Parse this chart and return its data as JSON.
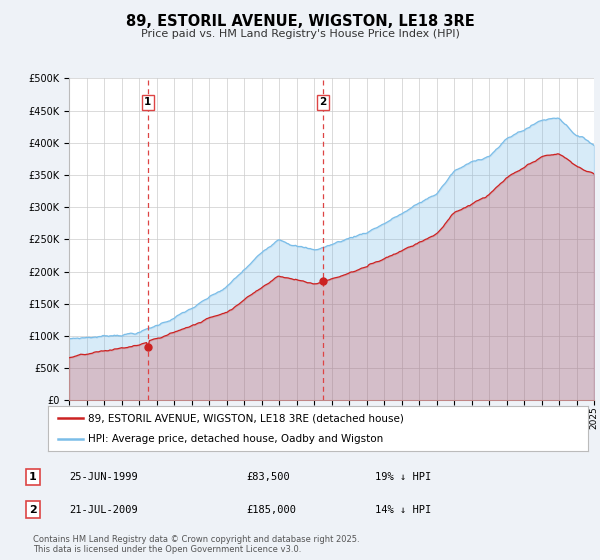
{
  "title": "89, ESTORIL AVENUE, WIGSTON, LE18 3RE",
  "subtitle": "Price paid vs. HM Land Registry's House Price Index (HPI)",
  "ylim": [
    0,
    500000
  ],
  "yticks": [
    0,
    50000,
    100000,
    150000,
    200000,
    250000,
    300000,
    350000,
    400000,
    450000,
    500000
  ],
  "ytick_labels": [
    "£0",
    "£50K",
    "£100K",
    "£150K",
    "£200K",
    "£250K",
    "£300K",
    "£350K",
    "£400K",
    "£450K",
    "£500K"
  ],
  "hpi_color": "#7bbde8",
  "price_color": "#cc2222",
  "vline_color": "#dd4444",
  "sale1_t": 4.5,
  "sale1_price": 83500,
  "sale2_t": 14.5,
  "sale2_price": 185000,
  "legend_line1": "89, ESTORIL AVENUE, WIGSTON, LE18 3RE (detached house)",
  "legend_line2": "HPI: Average price, detached house, Oadby and Wigston",
  "table_row1": [
    "1",
    "25-JUN-1999",
    "£83,500",
    "19% ↓ HPI"
  ],
  "table_row2": [
    "2",
    "21-JUL-2009",
    "£185,000",
    "14% ↓ HPI"
  ],
  "footnote": "Contains HM Land Registry data © Crown copyright and database right 2025.\nThis data is licensed under the Open Government Licence v3.0.",
  "bg_color": "#eef2f7",
  "plot_bg": "#ffffff",
  "grid_color": "#cccccc"
}
